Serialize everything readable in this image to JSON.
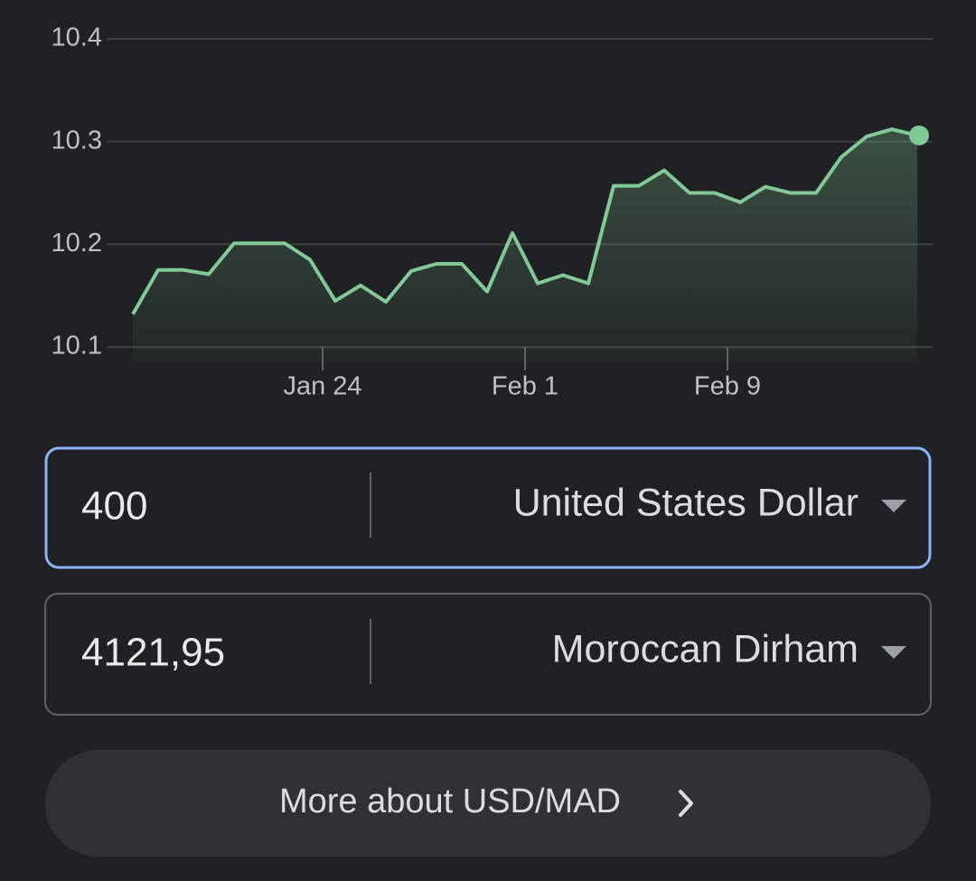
{
  "chart_data": {
    "type": "line",
    "x": [
      0,
      1,
      2,
      3,
      4,
      5,
      6,
      7,
      8,
      9,
      10,
      11,
      12,
      13,
      14,
      15,
      16,
      17,
      18,
      19,
      20,
      21,
      22,
      23,
      24,
      25,
      26,
      27,
      28,
      29,
      30,
      31
    ],
    "series": [
      {
        "color": "#81c995",
        "values": [
          10.132,
          10.175,
          10.175,
          10.171,
          10.201,
          10.201,
          10.201,
          10.185,
          10.145,
          10.16,
          10.144,
          10.174,
          10.181,
          10.181,
          10.154,
          10.211,
          10.162,
          10.17,
          10.162,
          10.257,
          10.257,
          10.272,
          10.25,
          10.25,
          10.241,
          10.256,
          10.25,
          10.25,
          10.285,
          10.305,
          10.312,
          10.306
        ]
      }
    ],
    "xlim": [
      0,
      31
    ],
    "xticks": [
      {
        "value": 7.5,
        "label": "Jan 24"
      },
      {
        "value": 15.5,
        "label": "Feb 1"
      },
      {
        "value": 23.5,
        "label": "Feb 9"
      }
    ],
    "ylim": [
      10.086,
      10.4
    ],
    "yticks": [
      10.1,
      10.2,
      10.3,
      10.4
    ],
    "grid": true
  },
  "converter": {
    "from": {
      "amount": "400",
      "currency": "United States Dollar"
    },
    "to": {
      "amount": "4121,95",
      "currency": "Moroccan Dirham"
    },
    "button": "More about USD/MAD"
  }
}
